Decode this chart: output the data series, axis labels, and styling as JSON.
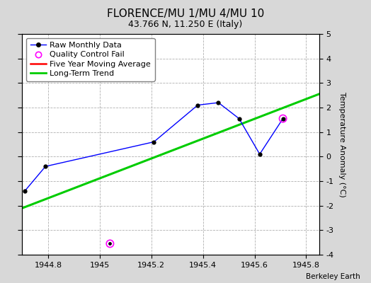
{
  "title": "FLORENCE/MU 1/MU 4/MU 10",
  "subtitle": "43.766 N, 11.250 E (Italy)",
  "credit": "Berkeley Earth",
  "xlim": [
    1944.7,
    1945.85
  ],
  "ylim": [
    -4,
    5
  ],
  "yticks": [
    -4,
    -3,
    -2,
    -1,
    0,
    1,
    2,
    3,
    4,
    5
  ],
  "xticks": [
    1944.8,
    1945.0,
    1945.2,
    1945.4,
    1945.6,
    1945.8
  ],
  "ylabel": "Temperature Anomaly (°C)",
  "raw_x": [
    1944.71,
    1944.79,
    1945.21,
    1945.38,
    1945.46,
    1945.54,
    1945.62,
    1945.71
  ],
  "raw_y": [
    -1.4,
    -0.4,
    0.6,
    2.1,
    2.2,
    1.55,
    0.1,
    1.55
  ],
  "qc_fail_x": [
    1945.04
  ],
  "qc_fail_y": [
    -3.55
  ],
  "qc_fail_on_raw_x": [
    1945.71
  ],
  "qc_fail_on_raw_y": [
    1.55
  ],
  "trend_x": [
    1944.7,
    1945.85
  ],
  "trend_y": [
    -2.1,
    2.55
  ],
  "raw_color": "#0000ff",
  "raw_marker_color": "#000000",
  "qc_color": "#ff00ff",
  "trend_color": "#00cc00",
  "five_year_color": "#ff0000",
  "bg_color": "#d8d8d8",
  "plot_bg_color": "#ffffff",
  "grid_color": "#b0b0b0",
  "title_fontsize": 11,
  "subtitle_fontsize": 9,
  "label_fontsize": 8,
  "tick_fontsize": 8,
  "legend_fontsize": 8
}
